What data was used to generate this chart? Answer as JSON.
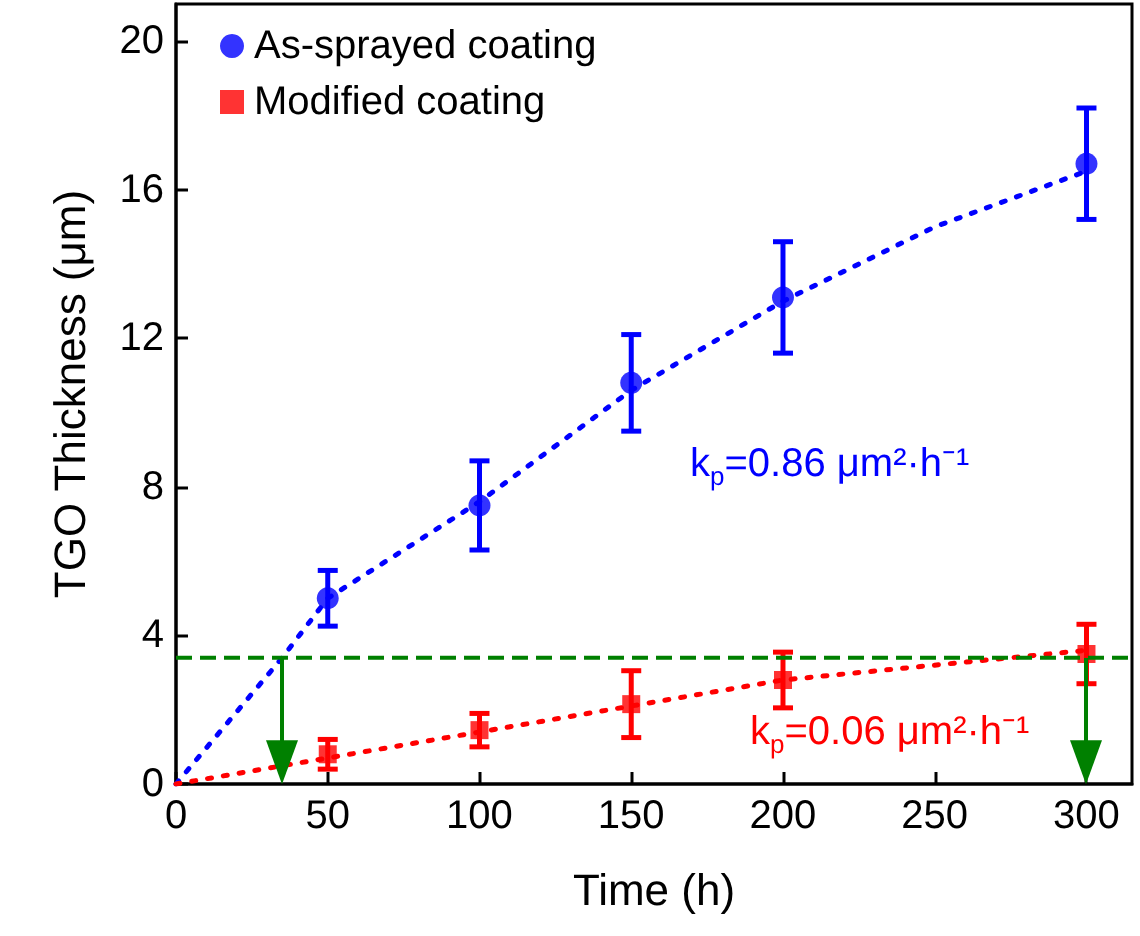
{
  "chart_data": {
    "type": "scatter",
    "xlabel": "Time (h)",
    "ylabel": "TGO Thickness (μm)",
    "xlim": [
      0,
      315
    ],
    "xticks": [
      0,
      50,
      100,
      150,
      200,
      250,
      300
    ],
    "ylim": [
      0,
      21
    ],
    "yticks": [
      0,
      4,
      8,
      12,
      16,
      20
    ],
    "grid": false,
    "legend": "top left",
    "series": [
      {
        "name": "As-sprayed coating",
        "color": "#0000ff",
        "marker": "circle",
        "x": [
          50,
          100,
          150,
          200,
          300
        ],
        "values": [
          5.0,
          7.5,
          10.8,
          13.1,
          16.7
        ],
        "errors": [
          0.75,
          1.2,
          1.3,
          1.5,
          1.5
        ]
      },
      {
        "name": "Modified coating",
        "color": "#ff0000",
        "marker": "square",
        "x": [
          50,
          100,
          150,
          200,
          300
        ],
        "values": [
          0.8,
          1.45,
          2.15,
          2.8,
          3.5
        ],
        "errors": [
          0.4,
          0.45,
          0.9,
          0.75,
          0.8
        ]
      },
      {
        "type": "line",
        "color": "#0000ff",
        "line_style": "dotted",
        "marker": "none",
        "x": [
          0,
          35,
          50,
          100,
          150,
          200,
          250,
          300
        ],
        "values": [
          0,
          3.4,
          5.0,
          7.6,
          10.6,
          13.0,
          15.0,
          16.5
        ]
      },
      {
        "type": "line",
        "color": "#ff0000",
        "line_style": "dotted",
        "marker": "none",
        "x": [
          0,
          50,
          100,
          150,
          200,
          250,
          300
        ],
        "values": [
          0,
          0.7,
          1.4,
          2.1,
          2.8,
          3.2,
          3.6
        ]
      }
    ],
    "ref_lines": [
      {
        "axis": "y",
        "value": 3.4,
        "color": "#008000",
        "line_style": "dashed"
      },
      {
        "axis": "x",
        "value": 35,
        "color": "#008000",
        "line_style": "solid"
      },
      {
        "axis": "x",
        "value": 300,
        "color": "#008000",
        "line_style": "solid"
      }
    ],
    "annotations": [
      "k$_{p}$=0.86 μm²·h⁻¹",
      "k$_{p}$=0.06 μm²·h⁻¹"
    ]
  }
}
